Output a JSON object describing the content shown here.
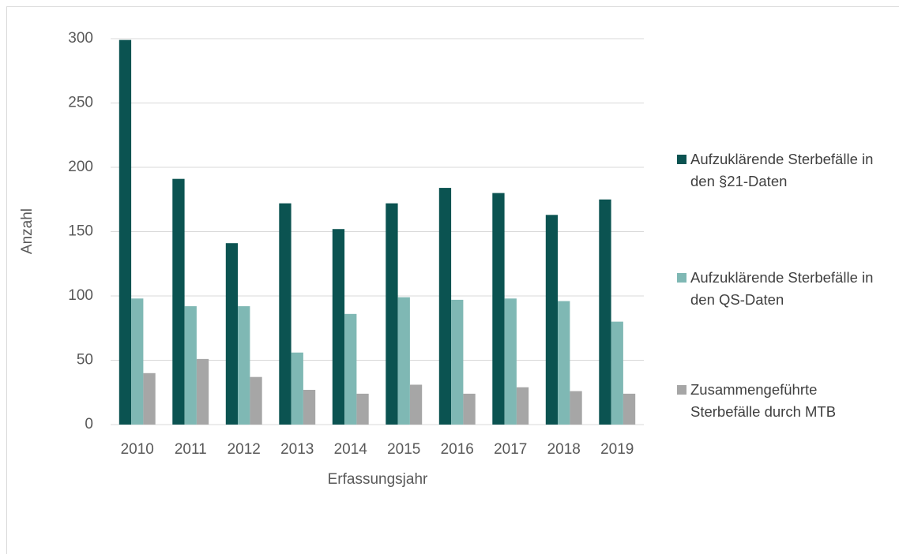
{
  "chart_data": {
    "type": "bar",
    "categories": [
      "2010",
      "2011",
      "2012",
      "2013",
      "2014",
      "2015",
      "2016",
      "2017",
      "2018",
      "2019"
    ],
    "series": [
      {
        "name": "Aufzuklärende Sterbefälle in den §21-Daten",
        "color": "#0b5351",
        "values": [
          299,
          191,
          141,
          172,
          152,
          172,
          184,
          180,
          163,
          175
        ]
      },
      {
        "name": "Aufzuklärende Sterbefälle in den QS-Daten",
        "color": "#7fb8b4",
        "values": [
          98,
          92,
          92,
          56,
          86,
          99,
          97,
          98,
          96,
          80
        ]
      },
      {
        "name": "Zusammengeführte Sterbefälle durch MTB",
        "color": "#a6a6a6",
        "values": [
          40,
          51,
          37,
          27,
          24,
          31,
          24,
          29,
          26,
          24
        ]
      }
    ],
    "xlabel": "Erfassungsjahr",
    "ylabel": "Anzahl",
    "ylim": [
      0,
      300
    ],
    "yticks": [
      0,
      50,
      100,
      150,
      200,
      250,
      300
    ],
    "grid": true,
    "legend": "right"
  }
}
